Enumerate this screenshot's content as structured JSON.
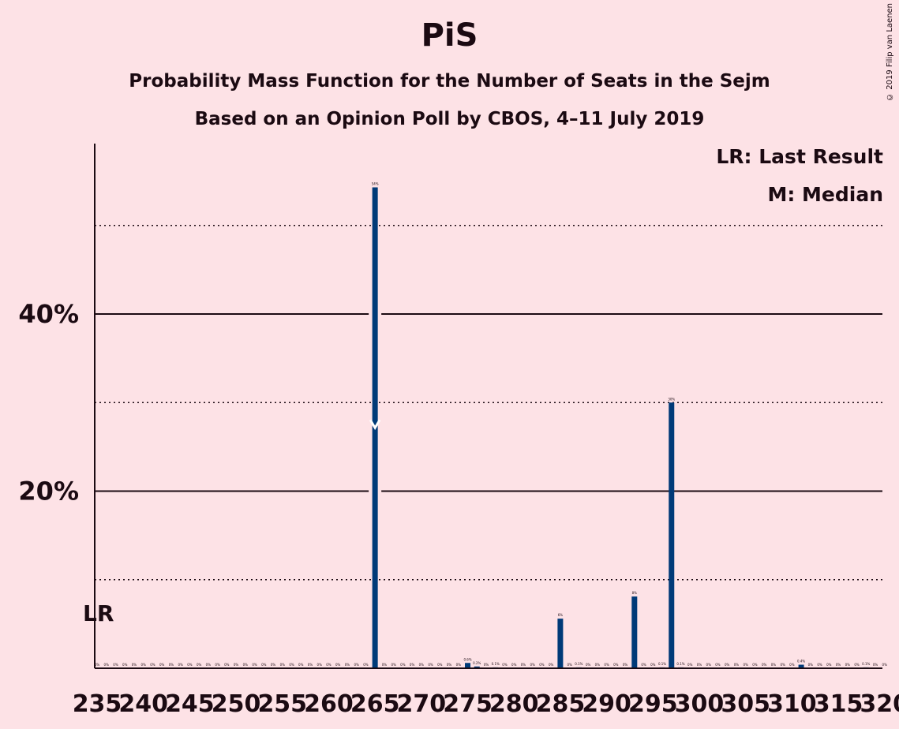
{
  "header": {
    "title": "PiS",
    "subtitle1": "Probability Mass Function for the Number of Seats in the Sejm",
    "subtitle2": "Based on an Opinion Poll by CBOS, 4–11 July 2019",
    "copyright": "© 2019 Filip van Laenen"
  },
  "legend": {
    "last_result": "LR: Last Result",
    "median": "M: Median"
  },
  "chart_data": {
    "type": "bar",
    "title": "PiS",
    "xlabel": "",
    "ylabel": "",
    "ylim": [
      0,
      58
    ],
    "xlim": [
      235,
      320
    ],
    "x_ticks": [
      235,
      240,
      245,
      250,
      255,
      260,
      265,
      270,
      275,
      280,
      285,
      290,
      295,
      300,
      305,
      310,
      315,
      320
    ],
    "y_ticks_major": [
      20,
      40
    ],
    "y_ticks_major_labels": [
      "20%",
      "40%"
    ],
    "y_gridlines_dotted": [
      10,
      30,
      50
    ],
    "bar_color": "#003a78",
    "last_result": 235,
    "last_result_label": "LR",
    "median": 265,
    "median_label": "M",
    "x": [
      235,
      236,
      237,
      238,
      239,
      240,
      241,
      242,
      243,
      244,
      245,
      246,
      247,
      248,
      249,
      250,
      251,
      252,
      253,
      254,
      255,
      256,
      257,
      258,
      259,
      260,
      261,
      262,
      263,
      264,
      265,
      266,
      267,
      268,
      269,
      270,
      271,
      272,
      273,
      274,
      275,
      276,
      277,
      278,
      279,
      280,
      281,
      282,
      283,
      284,
      285,
      286,
      287,
      288,
      289,
      290,
      291,
      292,
      293,
      294,
      295,
      296,
      297,
      298,
      299,
      300,
      301,
      302,
      303,
      304,
      305,
      306,
      307,
      308,
      309,
      310,
      311,
      312,
      313,
      314,
      315,
      316,
      317,
      318,
      319,
      320
    ],
    "values": [
      0,
      0,
      0,
      0,
      0,
      0,
      0,
      0,
      0,
      0,
      0,
      0,
      0,
      0,
      0,
      0,
      0,
      0,
      0,
      0,
      0,
      0,
      0,
      0,
      0,
      0,
      0,
      0,
      0,
      0,
      54.3,
      0,
      0,
      0,
      0,
      0,
      0,
      0,
      0,
      0,
      0.6,
      0.2,
      0,
      0.1,
      0,
      0,
      0,
      0,
      0,
      0,
      5.6,
      0,
      0.1,
      0,
      0,
      0,
      0,
      0,
      8.1,
      0,
      0,
      0.1,
      30,
      0.1,
      0,
      0,
      0,
      0,
      0,
      0,
      0,
      0,
      0,
      0,
      0,
      0,
      0.4,
      0,
      0,
      0,
      0,
      0,
      0,
      0.1,
      0,
      0
    ],
    "value_labels": [
      "0%",
      "0%",
      "0%",
      "0%",
      "0%",
      "0%",
      "0%",
      "0%",
      "0%",
      "0%",
      "0%",
      "0%",
      "0%",
      "0%",
      "0%",
      "0%",
      "0%",
      "0%",
      "0%",
      "0%",
      "0%",
      "0%",
      "0%",
      "0%",
      "0%",
      "0%",
      "0%",
      "0%",
      "0%",
      "0%",
      "54%",
      "0%",
      "0%",
      "0%",
      "0%",
      "0%",
      "0%",
      "0%",
      "0%",
      "0%",
      "0.6%",
      "0.2%",
      "0%",
      "0.1%",
      "0%",
      "0%",
      "0%",
      "0%",
      "0%",
      "0%",
      "6%",
      "0%",
      "0.1%",
      "0%",
      "0%",
      "0%",
      "0%",
      "0%",
      "8%",
      "0%",
      "0%",
      "0.1%",
      "30%",
      "0.1%",
      "0%",
      "0%",
      "0%",
      "0%",
      "0%",
      "0%",
      "0%",
      "0%",
      "0%",
      "0%",
      "0%",
      "0%",
      "0.4%",
      "0%",
      "0%",
      "0%",
      "0%",
      "0%",
      "0%",
      "0.1%",
      "0%",
      "0%"
    ]
  }
}
